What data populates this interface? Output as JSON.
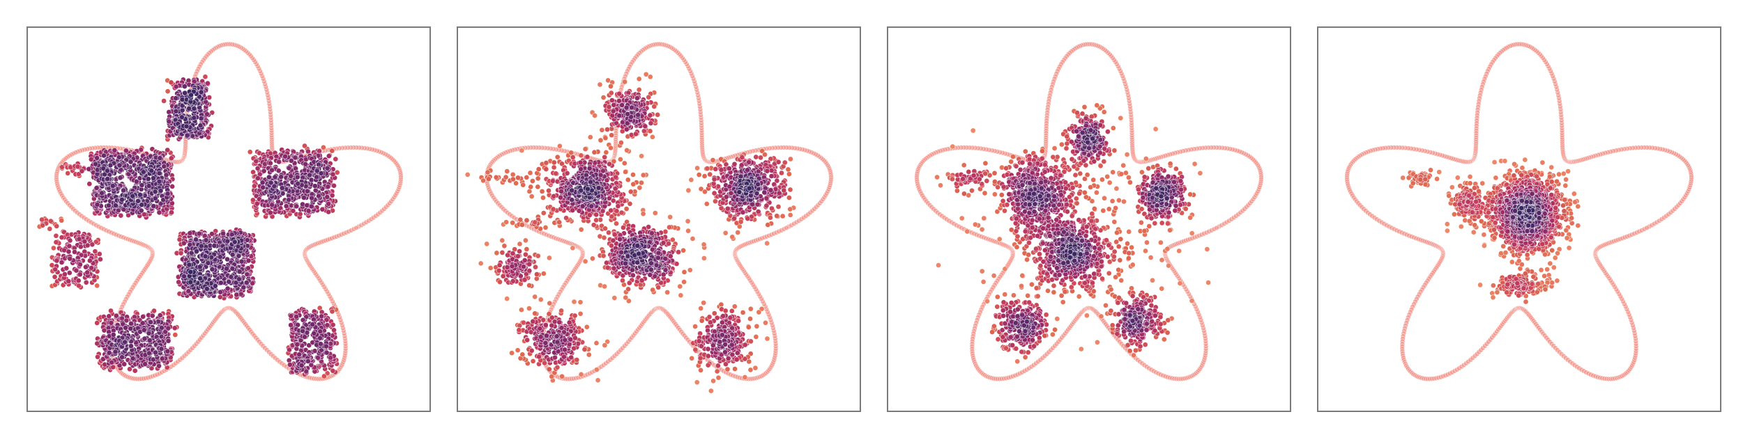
{
  "figure": {
    "colormap": [
      "#fcb09e",
      "#f08a6c",
      "#e06850",
      "#c8405a",
      "#a82f64",
      "#84296a",
      "#5e2a6b",
      "#3a2660"
    ],
    "boundary_color": "#f4938a",
    "frame_color": "#7a7a7a"
  },
  "chart_data": [
    {
      "type": "scatter",
      "panel": 1,
      "xlim": [
        -1.25,
        1.25
      ],
      "ylim": [
        -1.15,
        1.2
      ],
      "grid": false,
      "boundary": {
        "shape": "five-lobed-star",
        "lobes": 5,
        "outer_radius": 1.12,
        "inner_radius": 0.5
      },
      "clusters": [
        {
          "x": -0.25,
          "y": 0.7,
          "w": 0.25,
          "h": 0.35,
          "n": 330,
          "shape": "square"
        },
        {
          "x": -0.6,
          "y": 0.25,
          "w": 0.5,
          "h": 0.4,
          "n": 650,
          "shape": "square"
        },
        {
          "x": 0.4,
          "y": 0.25,
          "w": 0.5,
          "h": 0.4,
          "n": 520,
          "shape": "square"
        },
        {
          "x": -0.08,
          "y": -0.25,
          "w": 0.46,
          "h": 0.4,
          "n": 620,
          "shape": "square"
        },
        {
          "x": -0.95,
          "y": -0.22,
          "w": 0.28,
          "h": 0.32,
          "n": 170,
          "shape": "square"
        },
        {
          "x": -0.58,
          "y": -0.72,
          "w": 0.46,
          "h": 0.34,
          "n": 440,
          "shape": "square"
        },
        {
          "x": 0.52,
          "y": -0.72,
          "w": 0.28,
          "h": 0.4,
          "n": 300,
          "shape": "square"
        },
        {
          "x": -0.95,
          "y": 0.33,
          "w": 0.2,
          "h": 0.05,
          "n": 25,
          "shape": "square"
        },
        {
          "x": -1.1,
          "y": 0.0,
          "w": 0.12,
          "h": 0.05,
          "n": 15,
          "shape": "square"
        }
      ]
    },
    {
      "type": "scatter",
      "panel": 2,
      "xlim": [
        -1.25,
        1.25
      ],
      "ylim": [
        -1.15,
        1.2
      ],
      "grid": false,
      "boundary": {
        "shape": "five-lobed-star",
        "lobes": 5,
        "outer_radius": 1.12,
        "inner_radius": 0.5
      },
      "clusters": [
        {
          "x": -0.18,
          "y": 0.68,
          "w": 0.15,
          "h": 0.17,
          "n": 230,
          "shape": "blob"
        },
        {
          "x": -0.45,
          "y": 0.22,
          "w": 0.25,
          "h": 0.21,
          "n": 520,
          "shape": "blob"
        },
        {
          "x": 0.55,
          "y": 0.22,
          "w": 0.25,
          "h": 0.2,
          "n": 480,
          "shape": "blob"
        },
        {
          "x": -0.1,
          "y": -0.2,
          "w": 0.24,
          "h": 0.2,
          "n": 500,
          "shape": "blob"
        },
        {
          "x": -0.65,
          "y": -0.72,
          "w": 0.2,
          "h": 0.17,
          "n": 300,
          "shape": "blob"
        },
        {
          "x": 0.4,
          "y": -0.72,
          "w": 0.17,
          "h": 0.2,
          "n": 260,
          "shape": "blob"
        },
        {
          "x": -0.88,
          "y": -0.25,
          "w": 0.14,
          "h": 0.13,
          "n": 120,
          "shape": "blob"
        },
        {
          "x": -0.95,
          "y": 0.28,
          "w": 0.17,
          "h": 0.04,
          "n": 25,
          "shape": "blob"
        },
        {
          "x": -0.8,
          "y": 0.0,
          "w": 0.18,
          "h": 0.04,
          "n": 25,
          "shape": "blob"
        }
      ]
    },
    {
      "type": "scatter",
      "panel": 3,
      "xlim": [
        -1.25,
        1.25
      ],
      "ylim": [
        -1.15,
        1.2
      ],
      "grid": false,
      "boundary": {
        "shape": "five-lobed-star",
        "lobes": 5,
        "outer_radius": 1.12,
        "inner_radius": 0.5
      },
      "clusters": [
        {
          "x": 0.0,
          "y": 0.52,
          "w": 0.12,
          "h": 0.15,
          "n": 240,
          "shape": "blob"
        },
        {
          "x": -0.32,
          "y": 0.18,
          "w": 0.24,
          "h": 0.24,
          "n": 520,
          "shape": "blob"
        },
        {
          "x": 0.45,
          "y": 0.18,
          "w": 0.15,
          "h": 0.15,
          "n": 300,
          "shape": "blob"
        },
        {
          "x": -0.1,
          "y": -0.2,
          "w": 0.22,
          "h": 0.2,
          "n": 480,
          "shape": "blob"
        },
        {
          "x": -0.42,
          "y": -0.62,
          "w": 0.16,
          "h": 0.15,
          "n": 270,
          "shape": "blob"
        },
        {
          "x": 0.3,
          "y": -0.6,
          "w": 0.15,
          "h": 0.15,
          "n": 250,
          "shape": "blob"
        },
        {
          "x": -0.75,
          "y": 0.28,
          "w": 0.14,
          "h": 0.07,
          "n": 60,
          "shape": "blob"
        },
        {
          "x": 0.0,
          "y": -0.08,
          "w": 0.6,
          "h": 0.55,
          "n": 250,
          "shape": "blob"
        }
      ]
    },
    {
      "type": "scatter",
      "panel": 4,
      "xlim": [
        -1.25,
        1.25
      ],
      "ylim": [
        -1.15,
        1.2
      ],
      "grid": false,
      "boundary": {
        "shape": "five-lobed-star",
        "lobes": 5,
        "outer_radius": 1.12,
        "inner_radius": 0.5
      },
      "clusters": [
        {
          "x": 0.05,
          "y": 0.06,
          "w": 0.21,
          "h": 0.22,
          "n": 1600,
          "shape": "blob"
        },
        {
          "x": -0.32,
          "y": 0.12,
          "w": 0.1,
          "h": 0.12,
          "n": 160,
          "shape": "blob"
        },
        {
          "x": 0.0,
          "y": -0.38,
          "w": 0.17,
          "h": 0.07,
          "n": 160,
          "shape": "blob"
        },
        {
          "x": -0.62,
          "y": 0.28,
          "w": 0.09,
          "h": 0.05,
          "n": 45,
          "shape": "blob"
        }
      ]
    }
  ]
}
